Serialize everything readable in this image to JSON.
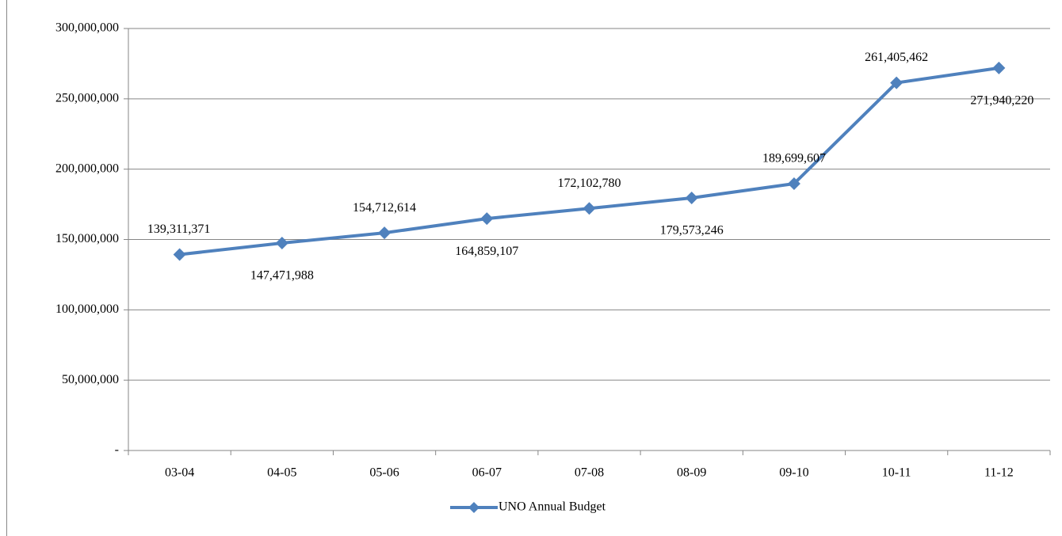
{
  "chart_data": {
    "type": "line",
    "categories": [
      "03-04",
      "04-05",
      "05-06",
      "06-07",
      "07-08",
      "08-09",
      "09-10",
      "10-11",
      "11-12"
    ],
    "series": [
      {
        "name": "UNO Annual Budget",
        "color": "#4f81bd",
        "values": [
          139311371,
          147471988,
          154712614,
          164859107,
          172102780,
          179573246,
          189699607,
          261405462,
          271940220
        ],
        "value_labels": [
          "139,311,371",
          "147,471,988",
          "154,712,614",
          "164,859,107",
          "172,102,780",
          "179,573,246",
          "189,699,607",
          "261,405,462",
          "271,940,220"
        ]
      }
    ],
    "ylim": [
      0,
      300000000
    ],
    "yticks": [
      {
        "value": 0,
        "label": "-"
      },
      {
        "value": 50000000,
        "label": "50,000,000"
      },
      {
        "value": 100000000,
        "label": "100,000,000"
      },
      {
        "value": 150000000,
        "label": "150,000,000"
      },
      {
        "value": 200000000,
        "label": "200,000,000"
      },
      {
        "value": 250000000,
        "label": "250,000,000"
      },
      {
        "value": 300000000,
        "label": "300,000,000"
      }
    ],
    "grid": true,
    "legend": "bottom"
  }
}
